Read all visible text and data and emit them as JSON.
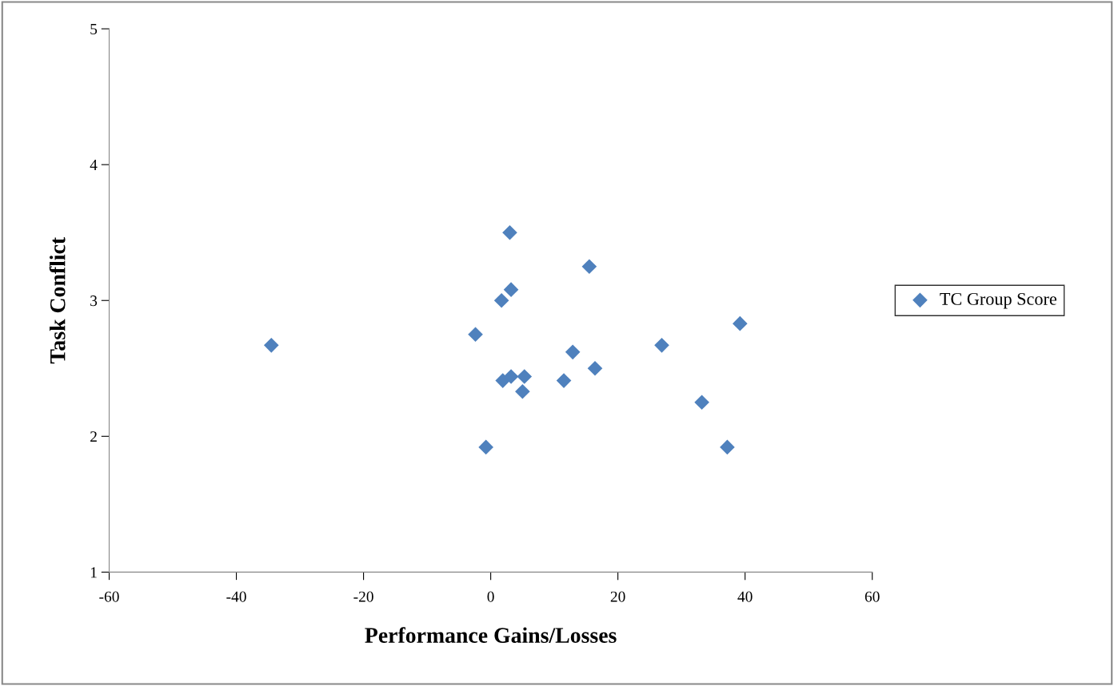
{
  "chart_data": {
    "type": "scatter",
    "xlabel": "Performance Gains/Losses",
    "ylabel": "Task Conflict",
    "series": [
      {
        "name": "TC Group Score",
        "color": "#4f81bd",
        "x": [
          -34.5,
          3.0,
          15.5,
          3.2,
          1.7,
          39.2,
          -2.4,
          26.9,
          12.9,
          16.4,
          1.9,
          3.2,
          5.3,
          11.5,
          5.0,
          33.2,
          -0.75,
          37.2
        ],
        "values": [
          2.67,
          3.5,
          3.25,
          3.08,
          3.0,
          2.83,
          2.75,
          2.67,
          2.62,
          2.5,
          2.41,
          2.44,
          2.44,
          2.41,
          2.33,
          2.25,
          1.92,
          1.92
        ]
      }
    ],
    "xlim": [
      -60,
      60
    ],
    "xticks": [
      -60,
      -40,
      -20,
      0,
      20,
      40,
      60
    ],
    "ylim": [
      1,
      5
    ],
    "yticks": [
      1,
      2,
      3,
      4,
      5
    ],
    "marker": "diamond",
    "grid": false,
    "legend": "right"
  }
}
